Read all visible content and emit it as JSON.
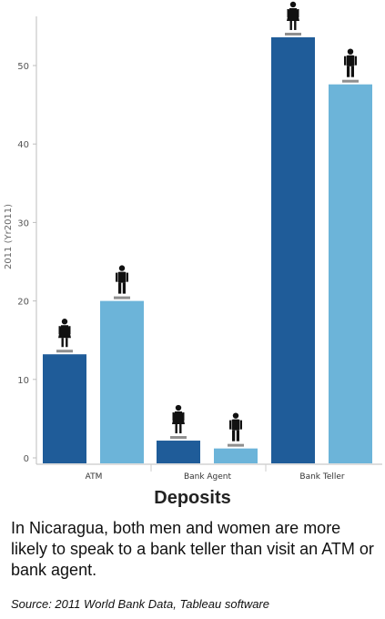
{
  "chart_data": {
    "type": "bar",
    "ylabel": "2011 (Yr2011)",
    "ylim": [
      0,
      55
    ],
    "yticks": [
      0,
      10,
      20,
      30,
      40,
      50
    ],
    "grid": false,
    "legend": "icons above bars (female / male)",
    "categories": [
      "ATM",
      "Bank Agent",
      "Bank Teller"
    ],
    "series": [
      {
        "gender": "female",
        "color": "#1f5c99",
        "values": [
          13.2,
          2.2,
          53.6
        ]
      },
      {
        "gender": "male",
        "color": "#6cb4d9",
        "values": [
          20.0,
          1.2,
          47.6
        ]
      }
    ]
  },
  "title": "Deposits",
  "caption": "In Nicaragua, both men and women are more likely to speak to a bank teller than visit an ATM or bank agent.",
  "source": "Source: 2011 World Bank Data, Tableau software"
}
